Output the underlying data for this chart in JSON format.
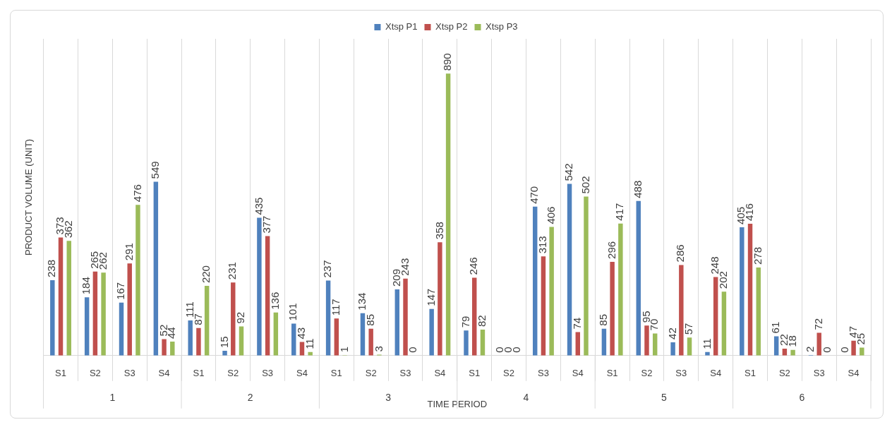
{
  "chart_data": {
    "type": "bar",
    "xlabel": "TIME PERIOD",
    "ylabel": "PRODUCT VOLUME (UNIT)",
    "categories": [
      "S1",
      "S2",
      "S3",
      "S4",
      "S1",
      "S2",
      "S3",
      "S4",
      "S1",
      "S2",
      "S3",
      "S4",
      "S1",
      "S2",
      "S3",
      "S4",
      "S1",
      "S2",
      "S3",
      "S4",
      "S1",
      "S2",
      "S3",
      "S4"
    ],
    "annotations": [
      "1",
      "2",
      "3",
      "4",
      "5",
      "6"
    ],
    "series": [
      {
        "name": "Xtsp P1",
        "color": "#4f81bd",
        "values": [
          238,
          184,
          167,
          549,
          111,
          15,
          435,
          101,
          237,
          134,
          209,
          147,
          79,
          0,
          470,
          542,
          85,
          488,
          42,
          11,
          405,
          61,
          2,
          0
        ]
      },
      {
        "name": "Xtsp P2",
        "color": "#c0504d",
        "values": [
          373,
          265,
          291,
          52,
          87,
          231,
          377,
          43,
          117,
          85,
          243,
          358,
          246,
          0,
          313,
          74,
          296,
          95,
          286,
          248,
          416,
          22,
          72,
          47
        ]
      },
      {
        "name": "Xtsp P3",
        "color": "#9bbb59",
        "values": [
          362,
          262,
          476,
          44,
          220,
          92,
          136,
          11,
          1,
          3,
          0,
          890,
          82,
          0,
          406,
          502,
          417,
          70,
          57,
          202,
          278,
          18,
          0,
          25
        ]
      }
    ],
    "data_labels": true,
    "grid": "x",
    "legend": "top"
  }
}
